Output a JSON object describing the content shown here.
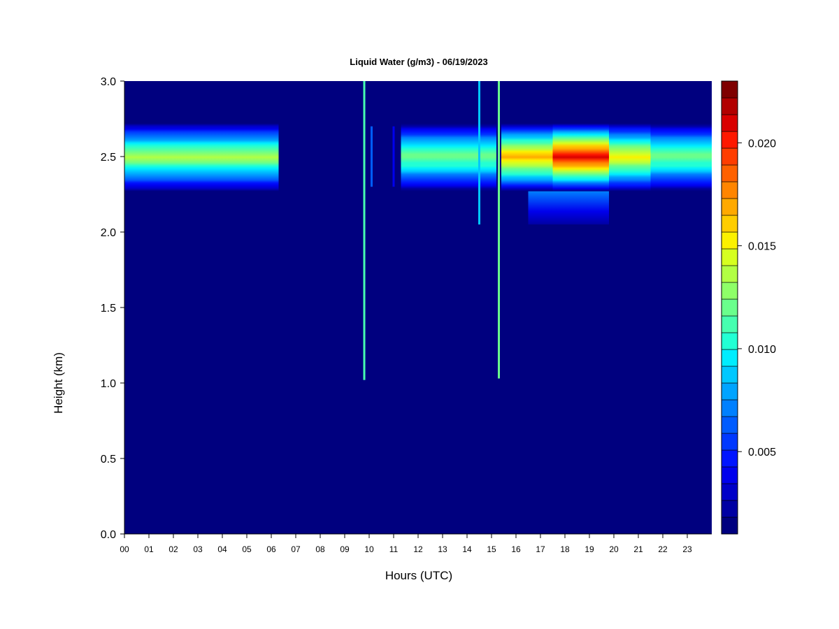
{
  "chart_data": {
    "type": "heatmap",
    "title": "Liquid Water (g/m3) - 06/19/2023",
    "xlabel": "Hours (UTC)",
    "ylabel": "Height (km)",
    "xlim": [
      0,
      24
    ],
    "ylim": [
      0.0,
      3.0
    ],
    "x_tick_labels": [
      "00",
      "01",
      "02",
      "03",
      "04",
      "05",
      "06",
      "07",
      "08",
      "09",
      "10",
      "11",
      "12",
      "13",
      "14",
      "15",
      "16",
      "17",
      "18",
      "19",
      "20",
      "21",
      "22",
      "23"
    ],
    "y_ticks": [
      "0.0",
      "0.5",
      "1.0",
      "1.5",
      "2.0",
      "2.5",
      "3.0"
    ],
    "colorbar": {
      "min": 0.001,
      "max": 0.023,
      "tick_labels": [
        "0.005",
        "0.010",
        "0.015",
        "0.020"
      ],
      "tick_values": [
        0.005,
        0.01,
        0.015,
        0.02
      ],
      "colors": [
        "#00007f",
        "#0000a3",
        "#0000c8",
        "#0000ed",
        "#0014ff",
        "#0038ff",
        "#005cff",
        "#0080ff",
        "#00a4ff",
        "#00c8ff",
        "#00edff",
        "#22ffd4",
        "#46ffb0",
        "#6aff8c",
        "#8eff68",
        "#b2ff44",
        "#d6ff20",
        "#fbf100",
        "#ffcd00",
        "#ffa900",
        "#ff8500",
        "#ff6100",
        "#ff3d00",
        "#fe1800",
        "#d90000",
        "#b20000",
        "#7f0000"
      ]
    },
    "background_value": 0.001,
    "cloud_layer": {
      "center_km": 2.5,
      "top_km": 2.72,
      "base_km": 2.27,
      "segments": [
        {
          "start_hour": 0.0,
          "end_hour": 6.3,
          "peak": 0.0135
        },
        {
          "start_hour": 11.3,
          "end_hour": 15.2,
          "peak": 0.0125
        },
        {
          "start_hour": 15.4,
          "end_hour": 17.5,
          "peak": 0.017
        },
        {
          "start_hour": 17.5,
          "end_hour": 19.8,
          "peak": 0.021
        },
        {
          "start_hour": 19.8,
          "end_hour": 21.5,
          "peak": 0.0155
        },
        {
          "start_hour": 21.5,
          "end_hour": 24.0,
          "peak": 0.0125
        }
      ],
      "extended_base": [
        {
          "start_hour": 16.5,
          "end_hour": 19.8,
          "base_km": 2.05
        }
      ]
    },
    "spikes": [
      {
        "hour": 9.8,
        "bottom_km": 1.02,
        "top_km": 3.0,
        "value": 0.011
      },
      {
        "hour": 10.1,
        "bottom_km": 2.3,
        "top_km": 2.7,
        "value": 0.006
      },
      {
        "hour": 11.0,
        "bottom_km": 2.3,
        "top_km": 2.7,
        "value": 0.004
      },
      {
        "hour": 14.5,
        "bottom_km": 2.05,
        "top_km": 3.0,
        "value": 0.009
      },
      {
        "hour": 15.3,
        "bottom_km": 1.03,
        "top_km": 3.0,
        "value": 0.012
      }
    ]
  }
}
